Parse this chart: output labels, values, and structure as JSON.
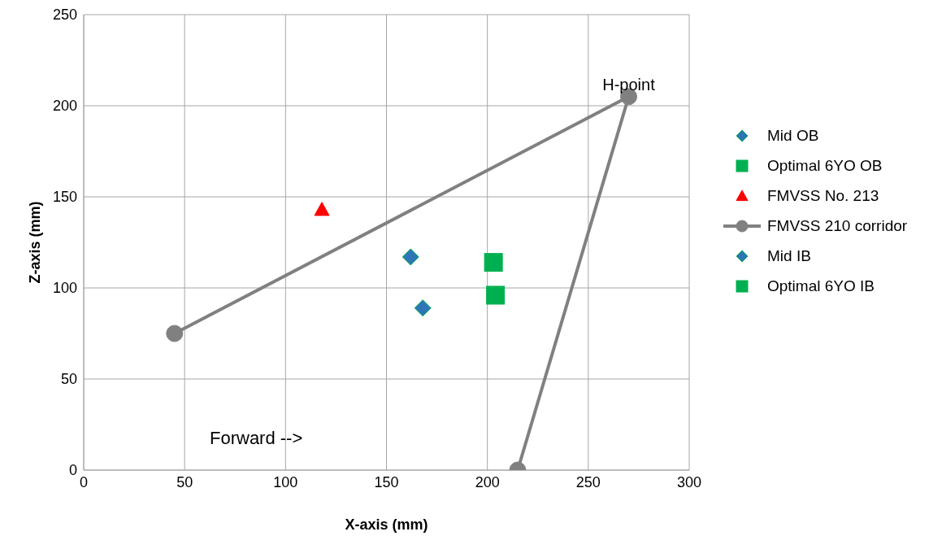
{
  "chart_data": {
    "type": "scatter",
    "xlabel": "X-axis (mm)",
    "ylabel": "Z-axis (mm)",
    "xlim": [
      0,
      300
    ],
    "xticks": [
      0,
      50,
      100,
      150,
      200,
      250,
      300
    ],
    "ylim": [
      0,
      250
    ],
    "yticks": [
      0,
      50,
      100,
      150,
      200,
      250
    ],
    "grid": true,
    "legend": "right",
    "annotations": [
      {
        "text": "H-point",
        "x": 270,
        "y": 205
      },
      "Forward -->"
    ],
    "series": [
      {
        "name": "Mid OB",
        "color": "#2e75b6",
        "marker": "diamond",
        "x": [
          168
        ],
        "values": [
          89
        ]
      },
      {
        "name": "Optimal 6YO OB",
        "color": "#00b050",
        "marker": "square",
        "x": [
          203
        ],
        "values": [
          114
        ]
      },
      {
        "name": "FMVSS No. 213",
        "color": "#ff0000",
        "marker": "triangle",
        "x": [
          118
        ],
        "values": [
          143
        ]
      },
      {
        "name": "FMVSS 210 corridor",
        "type": "line",
        "color": "#808080",
        "marker": "circle",
        "x": [
          45,
          270,
          215
        ],
        "values": [
          75,
          205,
          0
        ]
      },
      {
        "name": "Mid IB",
        "color": "#2e75b6",
        "marker": "diamond",
        "x": [
          162
        ],
        "values": [
          117
        ]
      },
      {
        "name": "Optimal 6YO IB",
        "color": "#00b050",
        "marker": "square",
        "x": [
          204
        ],
        "values": [
          96
        ]
      }
    ]
  }
}
